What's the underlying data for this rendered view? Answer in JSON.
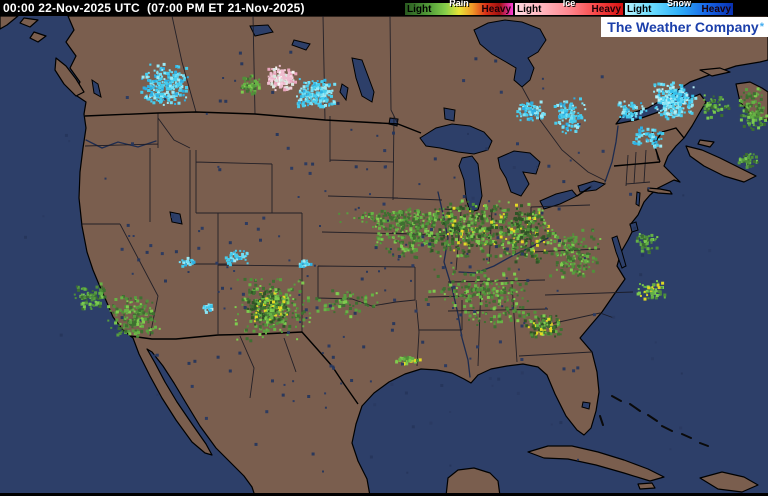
{
  "header": {
    "timestamp": "00:00 22-Nov-2025 UTC  (07:00 PM ET 21-Nov-2025)"
  },
  "legend": {
    "sections": [
      {
        "title": "Rain",
        "light": "Light",
        "heavy": "Heavy",
        "gradient": [
          "#2a5a20",
          "#3f7f2e",
          "#5aa53c",
          "#86cf4a",
          "#e8e437",
          "#f09828",
          "#d83018",
          "#a01010",
          "#ff3fd8"
        ]
      },
      {
        "title": "Ice",
        "light": "Light",
        "heavy": "Heavy",
        "gradient": [
          "#ffd8e0",
          "#ffb6be",
          "#ff8890",
          "#f84848",
          "#d81010"
        ]
      },
      {
        "title": "Snow",
        "light": "Light",
        "heavy": "Heavy",
        "gradient": [
          "#b8f4ff",
          "#6adcff",
          "#30b0f8",
          "#1868e8",
          "#0830b0"
        ]
      }
    ]
  },
  "logo": {
    "text": "The Weather Company",
    "mark": "*"
  },
  "map": {
    "colors": {
      "ocean": "#2d3f69",
      "land": "#7a5e4e",
      "coast": "#000000",
      "state": "#1a1a24",
      "river": "#1d2c50"
    },
    "radar": {
      "palettes": {
        "g": [
          "#3c7030",
          "#4f9339",
          "#66b845",
          "#7fd24f",
          "#58a23f",
          "#3c7030"
        ],
        "gd": [
          "#2c5424",
          "#3c7030",
          "#4f9339",
          "#66b845",
          "#7fd24f",
          "#e8e022",
          "#3c7030",
          "#2c5424"
        ],
        "gy": [
          "#66b845",
          "#7fd24f",
          "#e8e022",
          "#4f9339"
        ],
        "c": [
          "#45d2f5",
          "#73e6ff",
          "#2bb4ea",
          "#9df2ff",
          "#45d2f5"
        ],
        "cd": [
          "#5ee0ff",
          "#8aeeff",
          "#35c8f5",
          "#bff8ff",
          "#45d2f5"
        ],
        "i": [
          "#f6c2d6",
          "#fbd7e4",
          "#f1a9c4",
          "#ffffff",
          "#f6c2d6",
          "#dfeee6"
        ],
        "n": [
          "#26365c",
          "#2a3a62"
        ]
      },
      "clusters": [
        [
          412,
          232,
          48,
          26,
          260,
          "g",
          1
        ],
        [
          468,
          228,
          42,
          30,
          320,
          "gd",
          2
        ],
        [
          520,
          232,
          38,
          32,
          300,
          "gd",
          3
        ],
        [
          478,
          288,
          55,
          22,
          170,
          "g",
          4
        ],
        [
          573,
          252,
          28,
          26,
          150,
          "g",
          5
        ],
        [
          398,
          217,
          60,
          10,
          110,
          "g",
          6
        ],
        [
          543,
          325,
          20,
          13,
          130,
          "gd",
          7
        ],
        [
          272,
          308,
          42,
          34,
          200,
          "g",
          8
        ],
        [
          268,
          306,
          24,
          20,
          220,
          "gd",
          9
        ],
        [
          133,
          316,
          28,
          24,
          170,
          "g",
          10
        ],
        [
          90,
          296,
          17,
          14,
          90,
          "g",
          11
        ],
        [
          345,
          300,
          40,
          16,
          60,
          "g",
          12
        ],
        [
          752,
          108,
          15,
          22,
          130,
          "g",
          13
        ],
        [
          650,
          290,
          16,
          10,
          60,
          "gy",
          14
        ],
        [
          406,
          359,
          13,
          4,
          40,
          "gy",
          15
        ],
        [
          500,
          312,
          48,
          16,
          70,
          "g",
          16
        ],
        [
          646,
          242,
          13,
          11,
          55,
          "g",
          17
        ],
        [
          249,
          84,
          12,
          10,
          55,
          "g",
          18
        ],
        [
          715,
          105,
          14,
          12,
          60,
          "g",
          19
        ],
        [
          163,
          84,
          26,
          22,
          230,
          "c",
          20
        ],
        [
          315,
          92,
          20,
          17,
          190,
          "c",
          21
        ],
        [
          529,
          111,
          16,
          11,
          80,
          "c",
          22
        ],
        [
          569,
          114,
          17,
          19,
          110,
          "c",
          23
        ],
        [
          672,
          99,
          24,
          19,
          260,
          "cd",
          24
        ],
        [
          630,
          109,
          17,
          11,
          60,
          "c",
          25
        ],
        [
          648,
          136,
          19,
          11,
          55,
          "c",
          26
        ],
        [
          236,
          256,
          13,
          8,
          45,
          "c",
          27
        ],
        [
          206,
          307,
          6,
          5,
          25,
          "cd",
          28
        ],
        [
          186,
          261,
          8,
          5,
          20,
          "c",
          29
        ],
        [
          304,
          262,
          8,
          5,
          20,
          "c",
          30
        ],
        [
          281,
          77,
          15,
          13,
          150,
          "i",
          31
        ],
        [
          748,
          160,
          12,
          10,
          40,
          "g",
          32
        ],
        [
          384,
          256,
          368,
          228,
          240,
          "n",
          33
        ]
      ]
    }
  }
}
